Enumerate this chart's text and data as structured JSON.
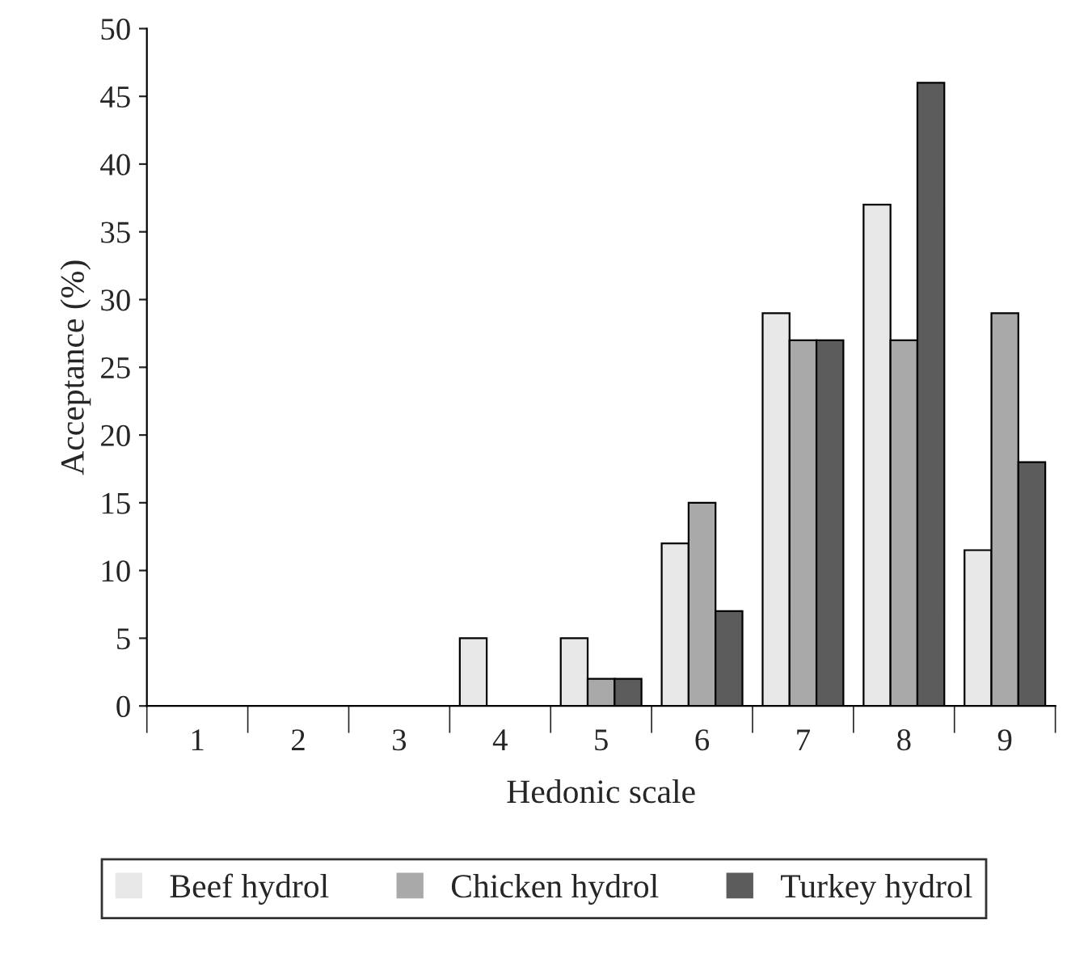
{
  "chart_data": {
    "type": "bar",
    "xlabel": "Hedonic scale",
    "ylabel": "Acceptance (%)",
    "categories": [
      "1",
      "2",
      "3",
      "4",
      "5",
      "6",
      "7",
      "8",
      "9"
    ],
    "series": [
      {
        "name": "Beef hydrol",
        "color": "#e8e8e8",
        "values": [
          0,
          0,
          0,
          5,
          5,
          12,
          29,
          37,
          11.5
        ]
      },
      {
        "name": "Chicken hydrol",
        "color": "#a9a9a9",
        "values": [
          0,
          0,
          0,
          0,
          2,
          15,
          27,
          27,
          29
        ]
      },
      {
        "name": "Turkey hydrol",
        "color": "#5c5c5c",
        "values": [
          0,
          0,
          0,
          0,
          2,
          7,
          27,
          46,
          18
        ]
      }
    ],
    "ylim": [
      0,
      50
    ],
    "yticks": [
      0,
      5,
      10,
      15,
      20,
      25,
      30,
      35,
      40,
      45,
      50
    ],
    "grid": false,
    "legend": "bottom"
  }
}
